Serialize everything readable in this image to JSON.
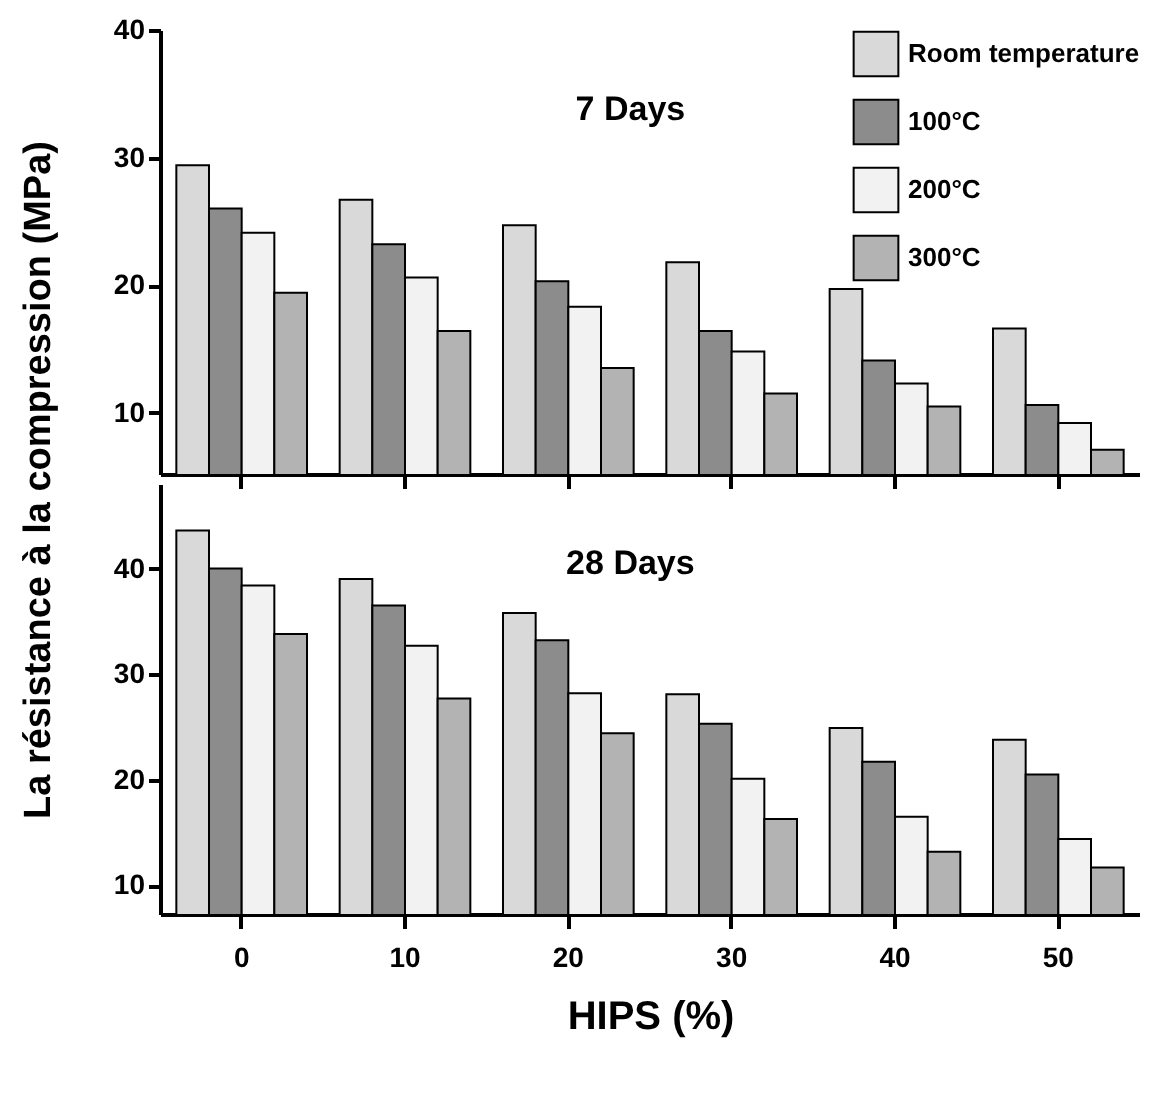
{
  "chart_data": [
    {
      "type": "bar",
      "title": "7 Days",
      "ylabel": "La résistance à la compression (MPa)",
      "categories": [
        "0",
        "10",
        "20",
        "30",
        "40",
        "50"
      ],
      "series": [
        {
          "name": "Room temperature",
          "color": "#d9d9d9",
          "values": [
            29.4,
            26.7,
            24.7,
            21.8,
            19.7,
            16.6
          ]
        },
        {
          "name": "100°C",
          "color": "#8c8c8c",
          "values": [
            26.0,
            23.2,
            20.3,
            16.4,
            14.1,
            10.6
          ]
        },
        {
          "name": "200°C",
          "color": "#f2f2f2",
          "values": [
            24.1,
            20.6,
            18.3,
            14.8,
            12.3,
            9.2
          ]
        },
        {
          "name": "300°C",
          "color": "#b3b3b3",
          "values": [
            19.4,
            16.4,
            13.5,
            11.5,
            10.5,
            7.1
          ]
        }
      ],
      "ylim": [
        5.2,
        40
      ],
      "yticks": [
        10,
        20,
        30,
        40
      ],
      "tick_labels": "y",
      "legend": "top right"
    },
    {
      "type": "bar",
      "title": "28 Days",
      "xlabel": "HIPS (%)",
      "categories": [
        "0",
        "10",
        "20",
        "30",
        "40",
        "50"
      ],
      "series": [
        {
          "color": "#d9d9d9",
          "values": [
            43.6,
            39.0,
            35.8,
            28.1,
            24.9,
            23.8
          ]
        },
        {
          "color": "#8c8c8c",
          "values": [
            40.0,
            36.5,
            33.2,
            25.3,
            21.7,
            20.5
          ]
        },
        {
          "color": "#f2f2f2",
          "values": [
            38.4,
            32.7,
            28.2,
            20.1,
            16.5,
            14.4
          ]
        },
        {
          "color": "#b3b3b3",
          "values": [
            33.8,
            27.7,
            24.4,
            16.3,
            13.2,
            11.7
          ]
        }
      ],
      "ylim": [
        7.3,
        48
      ],
      "yticks": [
        10,
        20,
        30,
        40
      ]
    }
  ]
}
